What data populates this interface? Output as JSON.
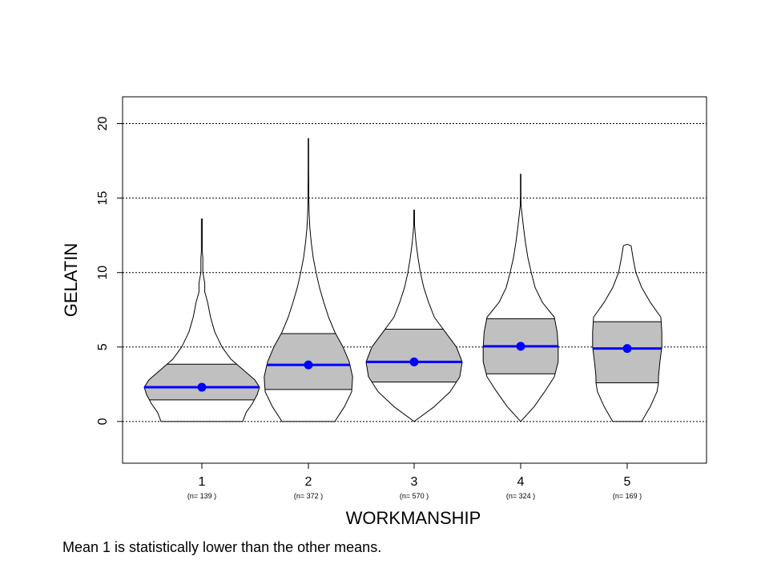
{
  "chart_data": {
    "type": "violin",
    "xlabel": "WORKMANSHIP",
    "ylabel": "GELATIN",
    "ylim": [
      -2.8,
      21.8
    ],
    "yticks": [
      0,
      5,
      10,
      15,
      20
    ],
    "grid": "horizontal dotted at y ticks",
    "categories": [
      "1",
      "2",
      "3",
      "4",
      "5"
    ],
    "counts": [
      "(n= 139 )",
      "(n= 372 )",
      "(n= 570 )",
      "(n= 324 )",
      "(n= 169 )"
    ],
    "groups": [
      {
        "category": "1",
        "mean": 2.3,
        "q1": 1.45,
        "q3": 3.85,
        "min": 0,
        "max": 13.6,
        "profile": [
          [
            0,
            0.85
          ],
          [
            0.6,
            0.92
          ],
          [
            1.2,
            1.05
          ],
          [
            1.8,
            1.15
          ],
          [
            2.3,
            1.2
          ],
          [
            2.8,
            1.1
          ],
          [
            3.5,
            0.85
          ],
          [
            4.2,
            0.6
          ],
          [
            5,
            0.42
          ],
          [
            6,
            0.27
          ],
          [
            7,
            0.18
          ],
          [
            8,
            0.12
          ],
          [
            8.7,
            0.06
          ],
          [
            9.3,
            0.06
          ],
          [
            10,
            0.02
          ],
          [
            11,
            0.02
          ],
          [
            11.4,
            0.01
          ],
          [
            13.6,
            0.01
          ]
        ]
      },
      {
        "category": "2",
        "mean": 3.8,
        "q1": 2.15,
        "q3": 5.9,
        "min": 0,
        "max": 19.0,
        "profile": [
          [
            0,
            0.55
          ],
          [
            1,
            0.75
          ],
          [
            2,
            0.9
          ],
          [
            3,
            0.92
          ],
          [
            4,
            0.85
          ],
          [
            5,
            0.72
          ],
          [
            6,
            0.55
          ],
          [
            7,
            0.42
          ],
          [
            8,
            0.32
          ],
          [
            9,
            0.23
          ],
          [
            10,
            0.16
          ],
          [
            11,
            0.1
          ],
          [
            12,
            0.06
          ],
          [
            13,
            0.03
          ],
          [
            14,
            0.015
          ],
          [
            15,
            0.008
          ],
          [
            16,
            0.006
          ],
          [
            17,
            0.005
          ],
          [
            19,
            0.005
          ]
        ]
      },
      {
        "category": "3",
        "mean": 4.0,
        "q1": 2.65,
        "q3": 6.2,
        "min": 0,
        "max": 14.2,
        "profile": [
          [
            0,
            0
          ],
          [
            1,
            0.42
          ],
          [
            2,
            0.75
          ],
          [
            3,
            0.95
          ],
          [
            4,
            1.0
          ],
          [
            5,
            0.88
          ],
          [
            6,
            0.65
          ],
          [
            7,
            0.42
          ],
          [
            8,
            0.3
          ],
          [
            9,
            0.2
          ],
          [
            10,
            0.13
          ],
          [
            11,
            0.08
          ],
          [
            12,
            0.04
          ],
          [
            12.7,
            0.02
          ],
          [
            13.2,
            0.008
          ],
          [
            14.2,
            0.006
          ]
        ]
      },
      {
        "category": "4",
        "mean": 5.05,
        "q1": 3.2,
        "q3": 6.9,
        "min": 0,
        "max": 16.6,
        "profile": [
          [
            0,
            0
          ],
          [
            1,
            0.28
          ],
          [
            2,
            0.5
          ],
          [
            3,
            0.7
          ],
          [
            4,
            0.78
          ],
          [
            5,
            0.78
          ],
          [
            6,
            0.76
          ],
          [
            7,
            0.7
          ],
          [
            8,
            0.45
          ],
          [
            9,
            0.3
          ],
          [
            10,
            0.22
          ],
          [
            11,
            0.15
          ],
          [
            12,
            0.1
          ],
          [
            13,
            0.06
          ],
          [
            14,
            0.025
          ],
          [
            14.5,
            0.008
          ],
          [
            15,
            0.005
          ],
          [
            16.6,
            0.005
          ]
        ]
      },
      {
        "category": "5",
        "mean": 4.9,
        "q1": 2.6,
        "q3": 6.7,
        "min": 0,
        "max": 11.9,
        "profile": [
          [
            0,
            0.3
          ],
          [
            1,
            0.48
          ],
          [
            2,
            0.62
          ],
          [
            2.6,
            0.65
          ],
          [
            3,
            0.65
          ],
          [
            4,
            0.68
          ],
          [
            5,
            0.72
          ],
          [
            6,
            0.72
          ],
          [
            7,
            0.7
          ],
          [
            8,
            0.48
          ],
          [
            9,
            0.3
          ],
          [
            10,
            0.18
          ],
          [
            11,
            0.12
          ],
          [
            11.8,
            0.08
          ],
          [
            11.9,
            0
          ]
        ]
      }
    ],
    "colors": {
      "iqr_fill": "#c0c0c0",
      "mean": "#0000ff",
      "outline": "#000000",
      "grid": "#000000"
    }
  },
  "caption": "Mean 1 is statistically lower than the other means."
}
